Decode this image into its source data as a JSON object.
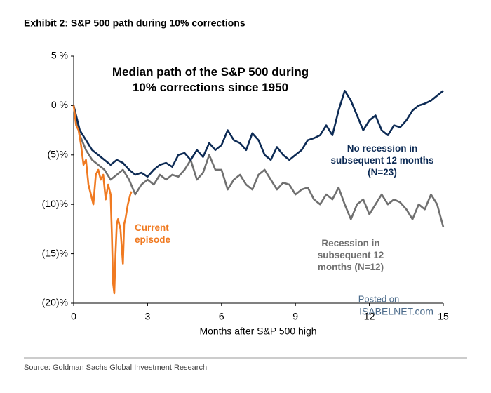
{
  "header": "Exhibit 2: S&P 500 path during 10% corrections",
  "source": "Source: Goldman Sachs Global Investment Research",
  "watermark": [
    "Posted on",
    "ISABELNET.com"
  ],
  "chart_data": {
    "type": "line",
    "title": "Median path of the S&P 500 during 10% corrections since 1950",
    "x_label": "Months after S&P 500 high",
    "xlim": [
      0,
      15
    ],
    "xticks": [
      0,
      3,
      6,
      9,
      12,
      15
    ],
    "ylim": [
      -20,
      5
    ],
    "yticks": [
      {
        "value": 5,
        "label": "5 %"
      },
      {
        "value": 0,
        "label": "0 %"
      },
      {
        "value": -5,
        "label": "(5)%"
      },
      {
        "value": -10,
        "label": "(10)%"
      },
      {
        "value": -15,
        "label": "(15)%"
      },
      {
        "value": -20,
        "label": "(20)%"
      }
    ],
    "grid": false,
    "series": [
      {
        "name": "No recession in subsequent 12 months (N=23)",
        "color": "#0d2b55",
        "x": [
          0,
          0.25,
          0.5,
          0.75,
          1,
          1.25,
          1.5,
          1.75,
          2,
          2.25,
          2.5,
          2.75,
          3,
          3.25,
          3.5,
          3.75,
          4,
          4.25,
          4.5,
          4.75,
          5,
          5.25,
          5.5,
          5.75,
          6,
          6.25,
          6.5,
          6.75,
          7,
          7.25,
          7.5,
          7.75,
          8,
          8.25,
          8.5,
          8.75,
          9,
          9.25,
          9.5,
          9.75,
          10,
          10.25,
          10.5,
          10.75,
          11,
          11.25,
          11.5,
          11.75,
          12,
          12.25,
          12.5,
          12.75,
          13,
          13.25,
          13.5,
          13.75,
          14,
          14.25,
          14.5,
          14.75,
          15
        ],
        "values": [
          0,
          -2.5,
          -3.5,
          -4.5,
          -5,
          -5.5,
          -6,
          -5.5,
          -5.8,
          -6.5,
          -7,
          -6.8,
          -7.2,
          -6.5,
          -6,
          -5.8,
          -6.2,
          -5,
          -4.8,
          -5.5,
          -4.5,
          -5.2,
          -3.8,
          -4.5,
          -4,
          -2.5,
          -3.5,
          -3.8,
          -4.5,
          -2.8,
          -3.5,
          -5,
          -5.5,
          -4.2,
          -5,
          -5.5,
          -5,
          -4.5,
          -3.5,
          -3.3,
          -3,
          -2,
          -3,
          -0.5,
          1.5,
          0.5,
          -1,
          -2.5,
          -1.5,
          -1,
          -2.5,
          -3,
          -2,
          -2.2,
          -1.5,
          -0.5,
          0,
          0.2,
          0.5,
          1,
          1.5
        ]
      },
      {
        "name": "Recession in subsequent 12 months (N=12)",
        "color": "#707070",
        "x": [
          0,
          0.25,
          0.5,
          0.75,
          1,
          1.25,
          1.5,
          1.75,
          2,
          2.25,
          2.5,
          2.75,
          3,
          3.25,
          3.5,
          3.75,
          4,
          4.25,
          4.5,
          4.75,
          5,
          5.25,
          5.5,
          5.75,
          6,
          6.25,
          6.5,
          6.75,
          7,
          7.25,
          7.5,
          7.75,
          8,
          8.25,
          8.5,
          8.75,
          9,
          9.25,
          9.5,
          9.75,
          10,
          10.25,
          10.5,
          10.75,
          11,
          11.25,
          11.5,
          11.75,
          12,
          12.25,
          12.5,
          12.75,
          13,
          13.25,
          13.5,
          13.75,
          14,
          14.25,
          14.5,
          14.75,
          15
        ],
        "values": [
          0,
          -3,
          -4.5,
          -5.5,
          -6,
          -6.5,
          -7.5,
          -7,
          -6.5,
          -7.5,
          -9,
          -8,
          -7.5,
          -8,
          -7,
          -7.5,
          -7,
          -7.2,
          -6.5,
          -5.5,
          -7.5,
          -6.8,
          -5,
          -6.5,
          -6.5,
          -8.5,
          -7.5,
          -7,
          -8,
          -8.5,
          -7,
          -6.5,
          -7.5,
          -8.5,
          -7.8,
          -8,
          -9,
          -8.5,
          -8.3,
          -9.5,
          -10,
          -9,
          -9.5,
          -8.3,
          -10,
          -11.5,
          -10,
          -9.5,
          -11,
          -10,
          -9,
          -10,
          -9.5,
          -9.8,
          -10.5,
          -11.5,
          -10,
          -10.5,
          -9,
          -10,
          -12.3
        ]
      },
      {
        "name": "Current episode",
        "color": "#f07a21",
        "x": [
          0,
          0.1,
          0.2,
          0.3,
          0.4,
          0.5,
          0.6,
          0.7,
          0.8,
          0.9,
          1,
          1.1,
          1.2,
          1.3,
          1.4,
          1.5,
          1.55,
          1.6,
          1.65,
          1.7,
          1.75,
          1.8,
          1.9,
          2,
          2.05,
          2.1,
          2.2,
          2.3,
          2.35
        ],
        "values": [
          0,
          -2,
          -2.5,
          -4,
          -6,
          -5.5,
          -8,
          -9,
          -10,
          -7,
          -6.5,
          -7.5,
          -7,
          -9.5,
          -8,
          -9,
          -13,
          -18,
          -19,
          -15,
          -12,
          -11.5,
          -12.5,
          -16,
          -12,
          -11.5,
          -10,
          -9,
          -8.7
        ]
      }
    ]
  }
}
